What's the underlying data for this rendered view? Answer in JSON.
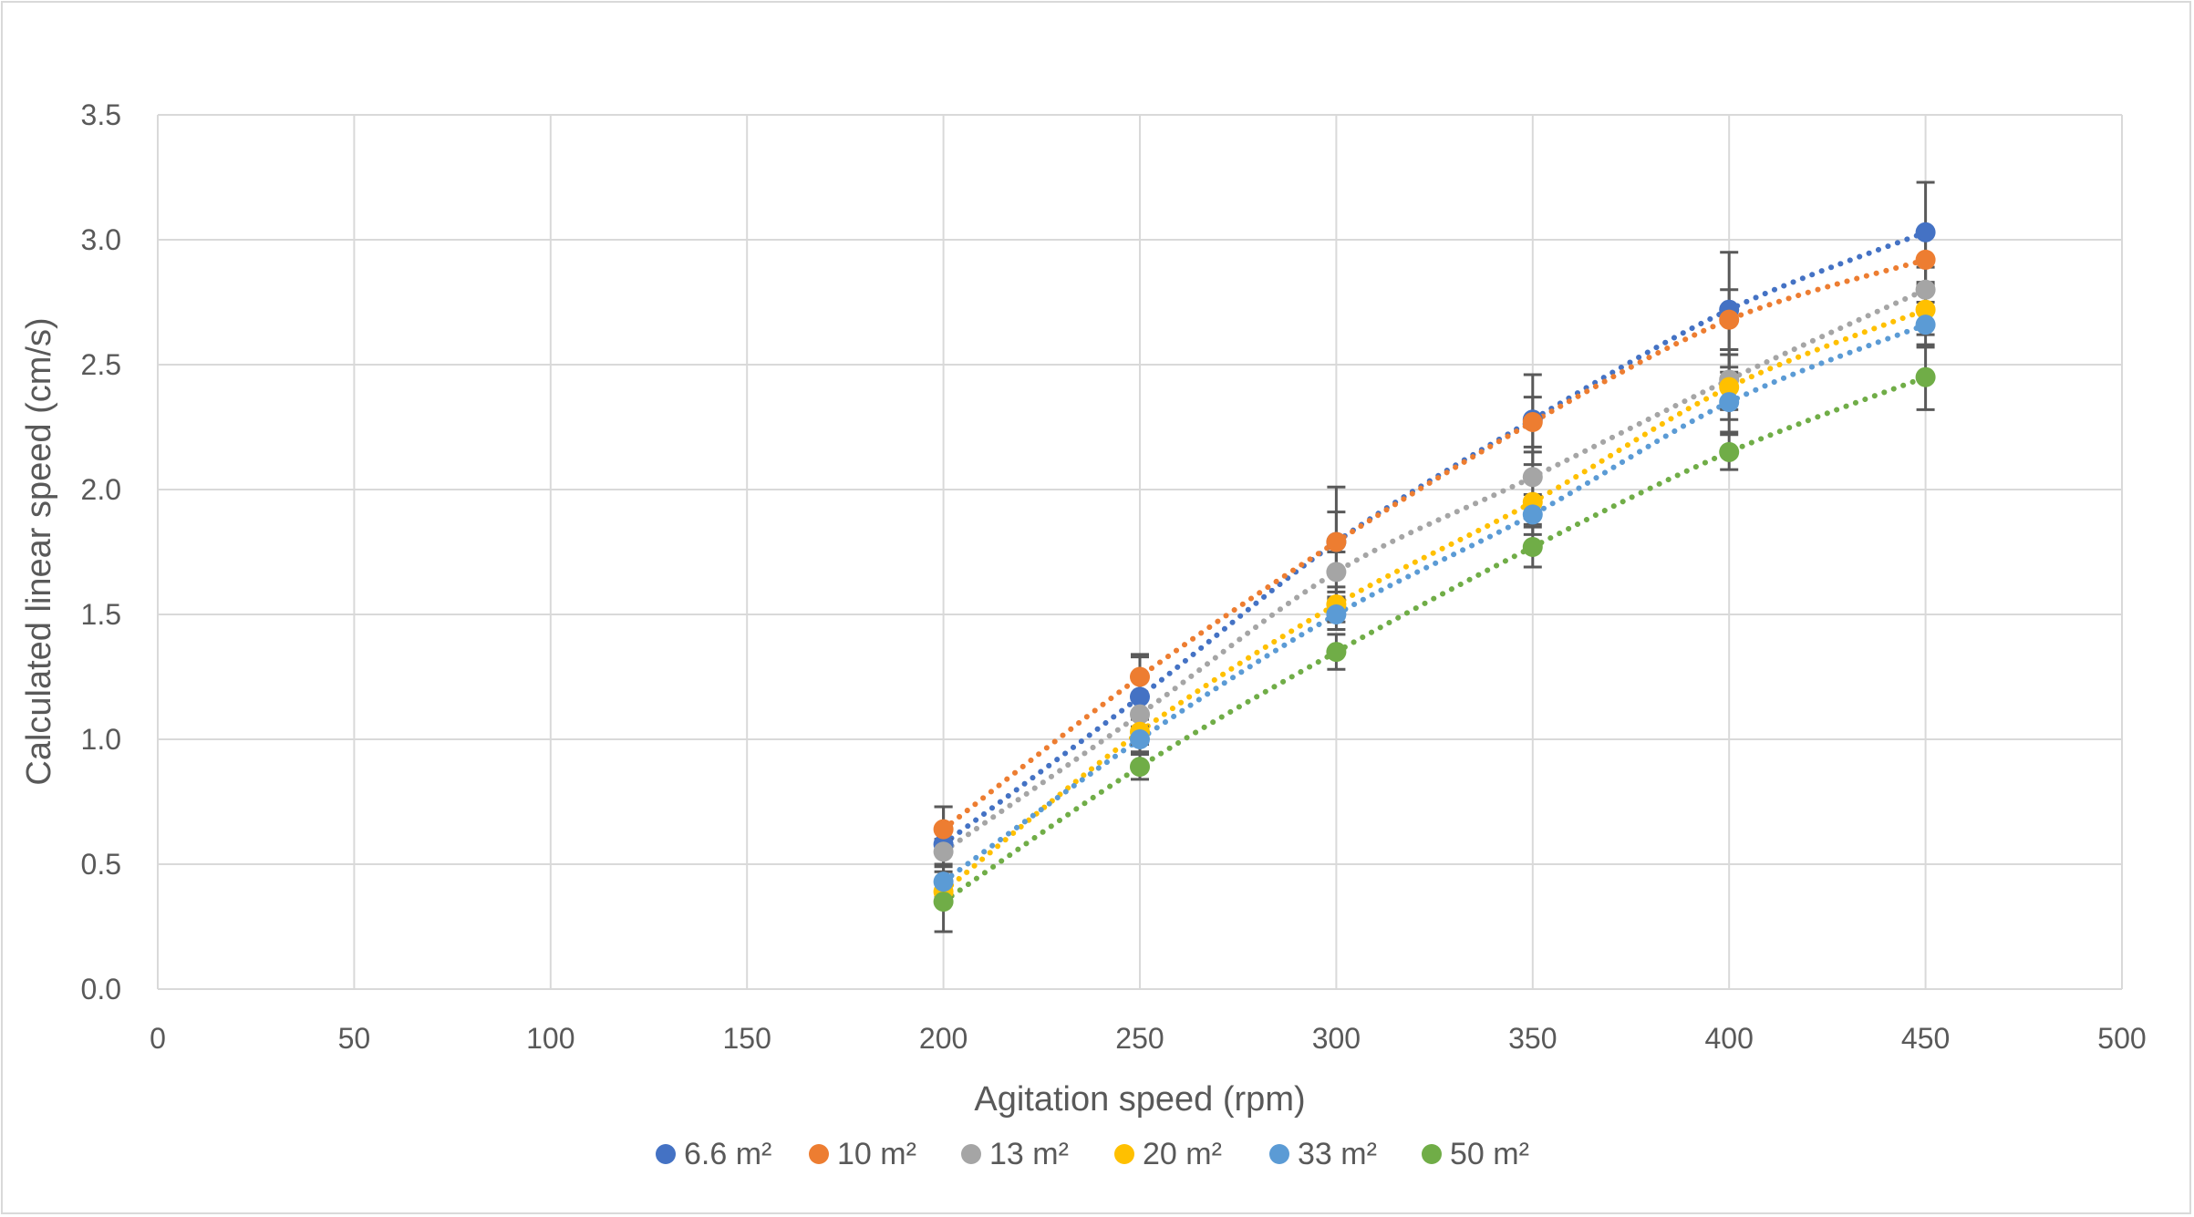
{
  "chart_data": {
    "type": "scatter",
    "title": "",
    "xlabel": "Agitation speed (rpm)",
    "ylabel": "Calculated linear speed (cm/s)",
    "xlim": [
      0,
      500
    ],
    "ylim": [
      0,
      3.5
    ],
    "xticks": [
      0,
      50,
      100,
      150,
      200,
      250,
      300,
      350,
      400,
      450,
      500
    ],
    "yticks": [
      "0.0",
      "0.5",
      "1.0",
      "1.5",
      "2.0",
      "2.5",
      "3.0",
      "3.5"
    ],
    "grid": true,
    "legend_position": "bottom",
    "trendline": "dotted",
    "error_bars": true,
    "x": [
      200,
      250,
      300,
      350,
      400,
      450
    ],
    "series": [
      {
        "name": "6.6 m²",
        "color": "#4472C4",
        "values": [
          0.58,
          1.17,
          1.79,
          2.28,
          2.72,
          3.03
        ],
        "errors": [
          0.15,
          0.17,
          0.22,
          0.18,
          0.23,
          0.2
        ]
      },
      {
        "name": "10 m²",
        "color": "#ED7D31",
        "values": [
          0.64,
          1.25,
          1.79,
          2.27,
          2.68,
          2.92
        ],
        "errors": [
          0.09,
          0.08,
          0.12,
          0.1,
          0.12,
          0.11
        ]
      },
      {
        "name": "13 m²",
        "color": "#A5A5A5",
        "values": [
          0.55,
          1.1,
          1.67,
          2.05,
          2.44,
          2.8
        ],
        "errors": [
          0.05,
          0.06,
          0.08,
          0.1,
          0.12,
          0.09
        ]
      },
      {
        "name": "20 m²",
        "color": "#FFC000",
        "values": [
          0.39,
          1.03,
          1.54,
          1.95,
          2.41,
          2.72
        ],
        "errors": [
          0.05,
          0.05,
          0.07,
          0.09,
          0.13,
          0.1
        ]
      },
      {
        "name": "33 m²",
        "color": "#5B9BD5",
        "values": [
          0.43,
          1.0,
          1.5,
          1.9,
          2.35,
          2.66
        ],
        "errors": [
          0.06,
          0.05,
          0.06,
          0.08,
          0.12,
          0.09
        ]
      },
      {
        "name": "50 m²",
        "color": "#70AD47",
        "values": [
          0.35,
          0.89,
          1.35,
          1.77,
          2.15,
          2.45
        ],
        "errors": [
          0.12,
          0.05,
          0.07,
          0.08,
          0.07,
          0.13
        ]
      }
    ]
  }
}
